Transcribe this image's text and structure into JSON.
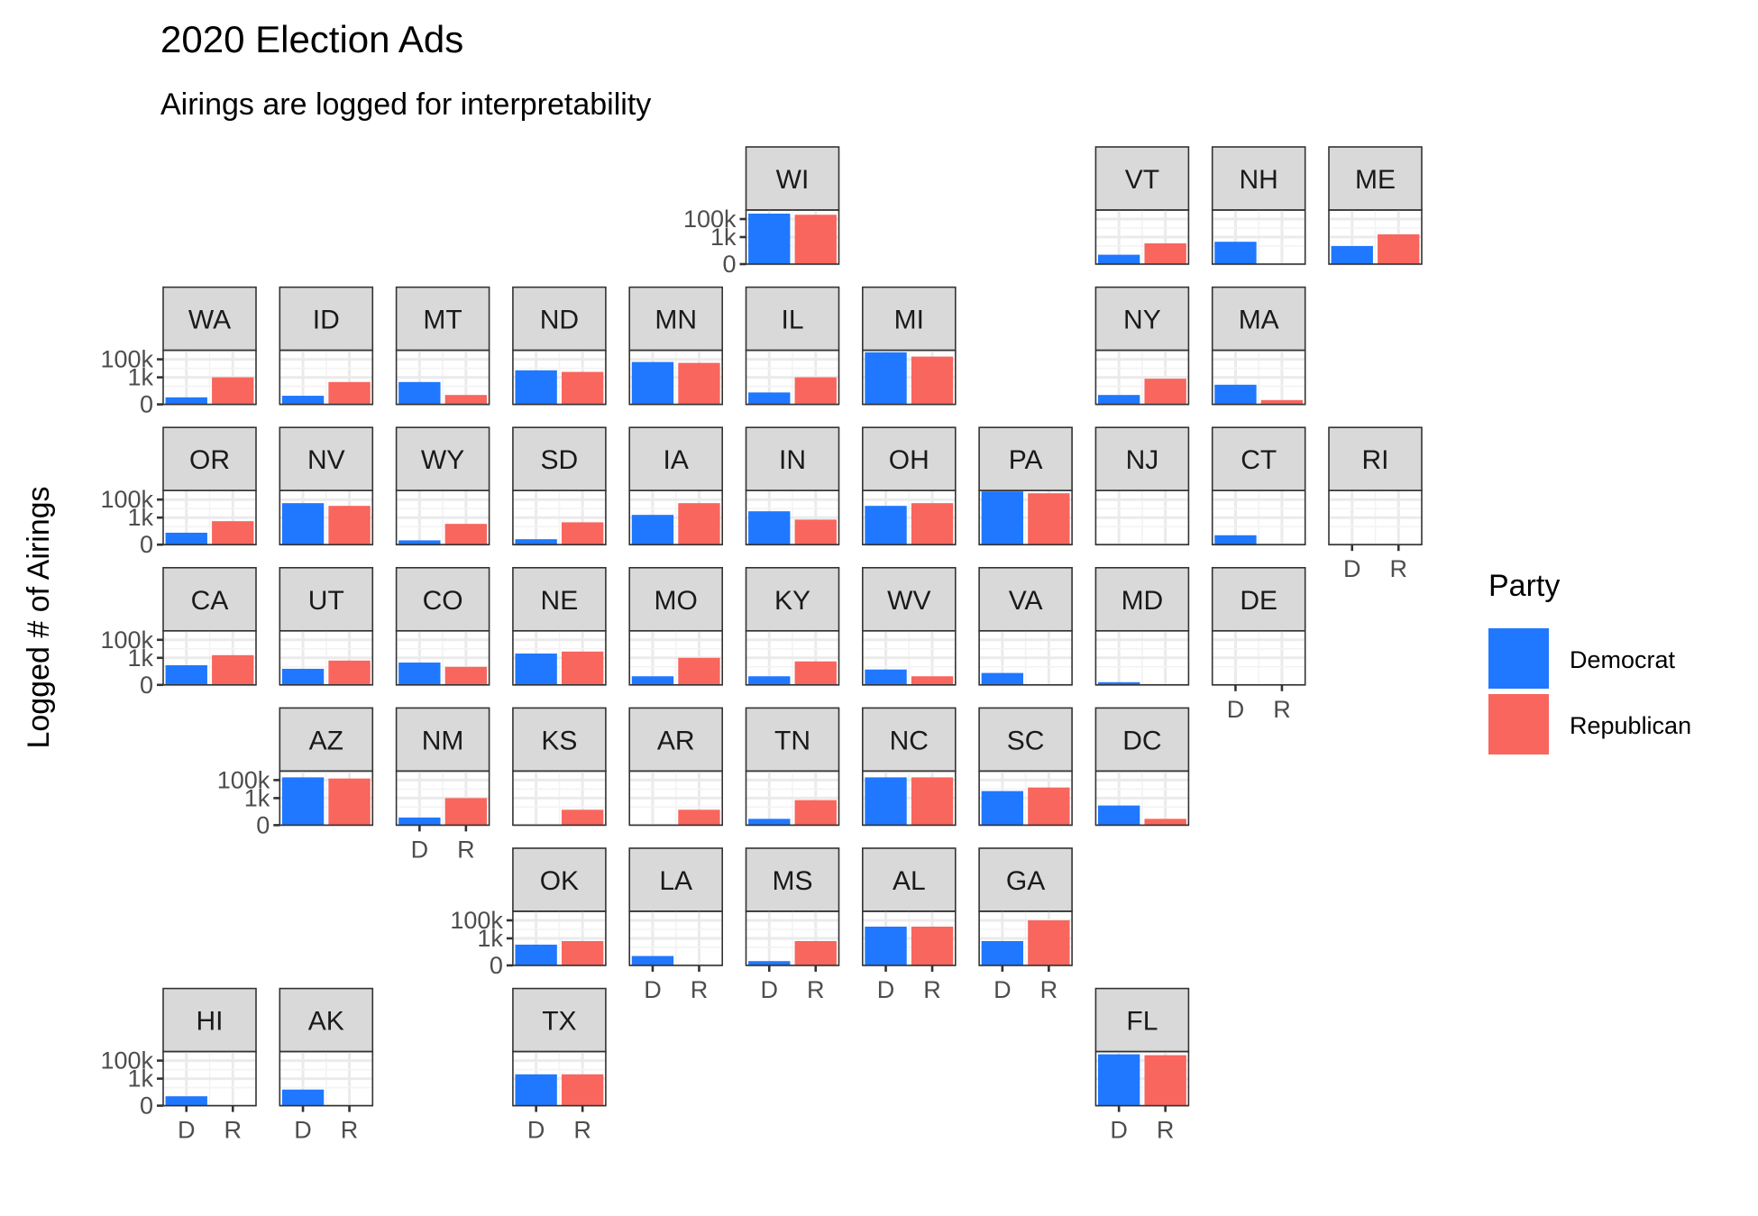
{
  "chart_data": {
    "type": "bar",
    "layout": "geofacet-grid",
    "title": "2020 Election Ads",
    "subtitle": "Airings are logged for interpretability",
    "xlabel": "",
    "ylabel": "Logged # of Airings",
    "categories": [
      "D",
      "R"
    ],
    "y_scale": "log10(x+1)",
    "ylim": [
      0,
      1000000
    ],
    "y_ticks": [
      {
        "value": 0,
        "label": "0"
      },
      {
        "value": 1000,
        "label": "1k"
      },
      {
        "value": 100000,
        "label": "100k"
      }
    ],
    "grid": true,
    "legend": {
      "title": "Party",
      "position": "right",
      "entries": [
        {
          "label": "Democrat",
          "color": "#1f78ff"
        },
        {
          "label": "Republican",
          "color": "#f8665d"
        }
      ]
    },
    "series": [
      {
        "name": "Democrat",
        "color": "#1f78ff"
      },
      {
        "name": "Republican",
        "color": "#f8665d"
      }
    ],
    "states": [
      {
        "name": "WI",
        "row": 0,
        "col": 5,
        "D": 400000,
        "R": 300000,
        "y_axis": true,
        "x_axis": false
      },
      {
        "name": "VT",
        "row": 0,
        "col": 8,
        "D": 10,
        "R": 200,
        "y_axis": false,
        "x_axis": false
      },
      {
        "name": "NH",
        "row": 0,
        "col": 9,
        "D": 300,
        "R": 0,
        "y_axis": false,
        "x_axis": false
      },
      {
        "name": "ME",
        "row": 0,
        "col": 10,
        "D": 100,
        "R": 2000,
        "y_axis": false,
        "x_axis": false
      },
      {
        "name": "WA",
        "row": 1,
        "col": 0,
        "D": 5,
        "R": 1000,
        "y_axis": true,
        "x_axis": false
      },
      {
        "name": "ID",
        "row": 1,
        "col": 1,
        "D": 8,
        "R": 300,
        "y_axis": false,
        "x_axis": false
      },
      {
        "name": "MT",
        "row": 1,
        "col": 2,
        "D": 300,
        "R": 10,
        "y_axis": false,
        "x_axis": false
      },
      {
        "name": "ND",
        "row": 1,
        "col": 3,
        "D": 6000,
        "R": 4000,
        "y_axis": false,
        "x_axis": false
      },
      {
        "name": "MN",
        "row": 1,
        "col": 4,
        "D": 50000,
        "R": 40000,
        "y_axis": false,
        "x_axis": false
      },
      {
        "name": "IL",
        "row": 1,
        "col": 5,
        "D": 20,
        "R": 1000,
        "y_axis": false,
        "x_axis": false
      },
      {
        "name": "MI",
        "row": 1,
        "col": 6,
        "D": 600000,
        "R": 200000,
        "y_axis": false,
        "x_axis": false
      },
      {
        "name": "NY",
        "row": 1,
        "col": 8,
        "D": 10,
        "R": 700,
        "y_axis": false,
        "x_axis": false
      },
      {
        "name": "MA",
        "row": 1,
        "col": 9,
        "D": 150,
        "R": 2,
        "y_axis": false,
        "x_axis": false
      },
      {
        "name": "OR",
        "row": 2,
        "col": 0,
        "D": 20,
        "R": 400,
        "y_axis": true,
        "x_axis": false
      },
      {
        "name": "NV",
        "row": 2,
        "col": 1,
        "D": 40000,
        "R": 20000,
        "y_axis": false,
        "x_axis": false
      },
      {
        "name": "WY",
        "row": 2,
        "col": 2,
        "D": 2,
        "R": 200,
        "y_axis": false,
        "x_axis": false
      },
      {
        "name": "SD",
        "row": 2,
        "col": 3,
        "D": 3,
        "R": 300,
        "y_axis": false,
        "x_axis": false
      },
      {
        "name": "IA",
        "row": 2,
        "col": 4,
        "D": 2000,
        "R": 40000,
        "y_axis": false,
        "x_axis": false
      },
      {
        "name": "IN",
        "row": 2,
        "col": 5,
        "D": 5000,
        "R": 600,
        "y_axis": false,
        "x_axis": false
      },
      {
        "name": "OH",
        "row": 2,
        "col": 6,
        "D": 20000,
        "R": 40000,
        "y_axis": false,
        "x_axis": false
      },
      {
        "name": "PA",
        "row": 2,
        "col": 7,
        "D": 800000,
        "R": 500000,
        "y_axis": false,
        "x_axis": false
      },
      {
        "name": "NJ",
        "row": 2,
        "col": 8,
        "D": 0,
        "R": 0,
        "y_axis": false,
        "x_axis": false
      },
      {
        "name": "CT",
        "row": 2,
        "col": 9,
        "D": 10,
        "R": 0,
        "y_axis": false,
        "x_axis": false
      },
      {
        "name": "RI",
        "row": 2,
        "col": 10,
        "D": 0,
        "R": 0,
        "y_axis": false,
        "x_axis": true
      },
      {
        "name": "CA",
        "row": 3,
        "col": 0,
        "D": 150,
        "R": 2000,
        "y_axis": true,
        "x_axis": false
      },
      {
        "name": "UT",
        "row": 3,
        "col": 1,
        "D": 60,
        "R": 500,
        "y_axis": false,
        "x_axis": false
      },
      {
        "name": "CO",
        "row": 3,
        "col": 2,
        "D": 300,
        "R": 100,
        "y_axis": false,
        "x_axis": false
      },
      {
        "name": "NE",
        "row": 3,
        "col": 3,
        "D": 3000,
        "R": 5000,
        "y_axis": false,
        "x_axis": false
      },
      {
        "name": "MO",
        "row": 3,
        "col": 4,
        "D": 8,
        "R": 1000,
        "y_axis": false,
        "x_axis": false
      },
      {
        "name": "KY",
        "row": 3,
        "col": 5,
        "D": 8,
        "R": 400,
        "y_axis": false,
        "x_axis": false
      },
      {
        "name": "WV",
        "row": 3,
        "col": 6,
        "D": 50,
        "R": 8,
        "y_axis": false,
        "x_axis": false
      },
      {
        "name": "VA",
        "row": 3,
        "col": 7,
        "D": 20,
        "R": 0,
        "y_axis": false,
        "x_axis": false
      },
      {
        "name": "MD",
        "row": 3,
        "col": 8,
        "D": 1,
        "R": 0,
        "y_axis": false,
        "x_axis": false
      },
      {
        "name": "DE",
        "row": 3,
        "col": 9,
        "D": 0,
        "R": 0,
        "y_axis": false,
        "x_axis": true
      },
      {
        "name": "AZ",
        "row": 4,
        "col": 1,
        "D": 200000,
        "R": 150000,
        "y_axis": true,
        "x_axis": false
      },
      {
        "name": "NM",
        "row": 4,
        "col": 2,
        "D": 6,
        "R": 1000,
        "y_axis": false,
        "x_axis": true
      },
      {
        "name": "KS",
        "row": 4,
        "col": 3,
        "D": 0,
        "R": 50,
        "y_axis": false,
        "x_axis": false
      },
      {
        "name": "AR",
        "row": 4,
        "col": 4,
        "D": 0,
        "R": 50,
        "y_axis": false,
        "x_axis": false
      },
      {
        "name": "TN",
        "row": 4,
        "col": 5,
        "D": 4,
        "R": 600,
        "y_axis": false,
        "x_axis": false
      },
      {
        "name": "NC",
        "row": 4,
        "col": 6,
        "D": 200000,
        "R": 200000,
        "y_axis": false,
        "x_axis": false
      },
      {
        "name": "SC",
        "row": 4,
        "col": 7,
        "D": 6000,
        "R": 15000,
        "y_axis": false,
        "x_axis": false
      },
      {
        "name": "DC",
        "row": 4,
        "col": 8,
        "D": 150,
        "R": 4,
        "y_axis": false,
        "x_axis": false
      },
      {
        "name": "OK",
        "row": 5,
        "col": 3,
        "D": 200,
        "R": 500,
        "y_axis": true,
        "x_axis": false
      },
      {
        "name": "LA",
        "row": 5,
        "col": 4,
        "D": 10,
        "R": 0,
        "y_axis": false,
        "x_axis": true
      },
      {
        "name": "MS",
        "row": 5,
        "col": 5,
        "D": 2,
        "R": 500,
        "y_axis": false,
        "x_axis": true
      },
      {
        "name": "AL",
        "row": 5,
        "col": 6,
        "D": 20000,
        "R": 20000,
        "y_axis": false,
        "x_axis": true
      },
      {
        "name": "GA",
        "row": 5,
        "col": 7,
        "D": 500,
        "R": 100000,
        "y_axis": false,
        "x_axis": true
      },
      {
        "name": "HI",
        "row": 6,
        "col": 0,
        "D": 10,
        "R": 0,
        "y_axis": true,
        "x_axis": true
      },
      {
        "name": "AK",
        "row": 6,
        "col": 1,
        "D": 60,
        "R": 0,
        "y_axis": false,
        "x_axis": true
      },
      {
        "name": "TX",
        "row": 6,
        "col": 3,
        "D": 3000,
        "R": 3000,
        "y_axis": false,
        "x_axis": true
      },
      {
        "name": "FL",
        "row": 6,
        "col": 8,
        "D": 500000,
        "R": 400000,
        "y_axis": false,
        "x_axis": true
      }
    ]
  }
}
